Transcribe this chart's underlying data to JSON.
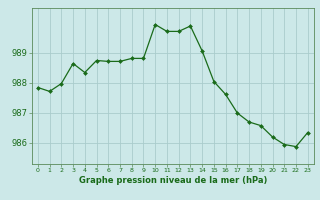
{
  "x": [
    0,
    1,
    2,
    3,
    4,
    5,
    6,
    7,
    8,
    9,
    10,
    11,
    12,
    13,
    14,
    15,
    16,
    17,
    18,
    19,
    20,
    21,
    22,
    23
  ],
  "y": [
    987.85,
    987.72,
    987.98,
    988.65,
    988.35,
    988.75,
    988.72,
    988.72,
    988.82,
    988.82,
    989.95,
    989.72,
    989.72,
    989.9,
    989.07,
    988.05,
    987.62,
    987.0,
    986.7,
    986.58,
    986.2,
    985.95,
    985.88,
    986.35
  ],
  "line_color": "#1a6b1a",
  "marker": "D",
  "marker_size": 2,
  "bg_color": "#cce8e8",
  "grid_color": "#aacccc",
  "ylim": [
    985.3,
    990.5
  ],
  "yticks": [
    986,
    987,
    988,
    989
  ],
  "xticks": [
    0,
    1,
    2,
    3,
    4,
    5,
    6,
    7,
    8,
    9,
    10,
    11,
    12,
    13,
    14,
    15,
    16,
    17,
    18,
    19,
    20,
    21,
    22,
    23
  ],
  "xlabel": "Graphe pression niveau de la mer (hPa)",
  "xlabel_color": "#1a6b1a",
  "tick_color": "#1a6b1a",
  "axis_color": "#5a8a5a",
  "xticklabel_fontsize": 4.5,
  "yticklabel_fontsize": 6.0,
  "xlabel_fontsize": 6.0
}
